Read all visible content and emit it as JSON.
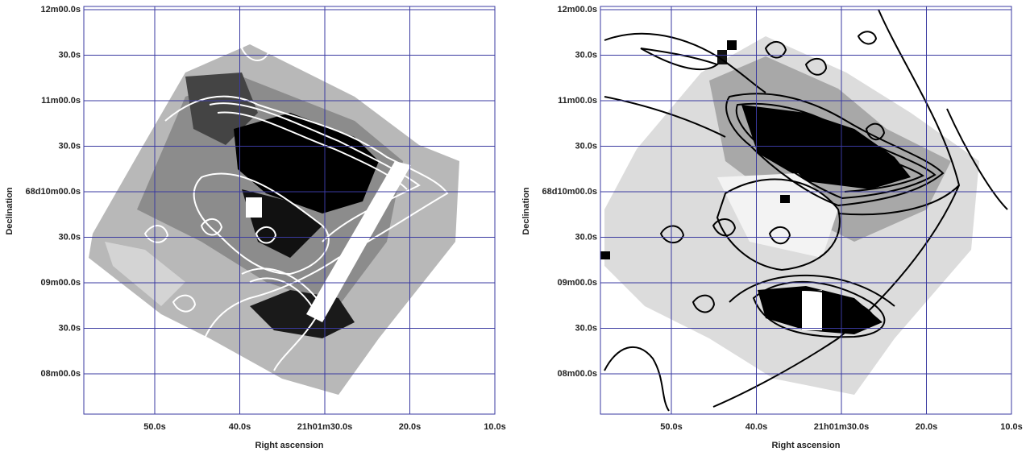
{
  "panels": [
    {
      "y_label": "Declination",
      "x_label": "Right ascension",
      "yticks": [
        "12m00.0s",
        "30.0s",
        "11m00.0s",
        "30.0s",
        "68d10m00.0s",
        "30.0s",
        "09m00.0s",
        "30.0s",
        "08m00.0s"
      ],
      "xticks": [
        "50.0s",
        "40.0s",
        "21h01m30.0s",
        "20.0s",
        "10.0s"
      ]
    },
    {
      "y_label": "Declination",
      "x_label": "Right ascension",
      "yticks": [
        "12m00.0s",
        "30.0s",
        "11m00.0s",
        "30.0s",
        "68d10m00.0s",
        "30.0s",
        "09m00.0s",
        "30.0s",
        "08m00.0s"
      ],
      "xticks": [
        "50.0s",
        "40.0s",
        "21h01m30.0s",
        "20.0s",
        "10.0s"
      ]
    }
  ]
}
